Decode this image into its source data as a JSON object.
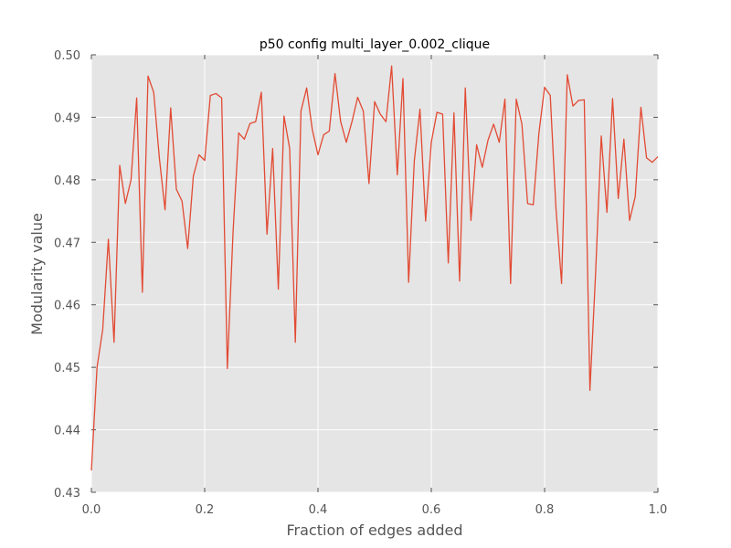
{
  "colors": {
    "plot_background": "#e5e5e5",
    "grid": "#ffffff",
    "line": "#e24a33",
    "text": "#555555"
  },
  "chart_data": {
    "type": "line",
    "title": "p50 config multi_layer_0.002_clique",
    "xlabel": "Fraction of edges added",
    "ylabel": "Modularity value",
    "xlim": [
      0.0,
      1.0
    ],
    "ylim": [
      0.43,
      0.5
    ],
    "x_ticks": [
      "0.0",
      "0.2",
      "0.4",
      "0.6",
      "0.8",
      "1.0"
    ],
    "y_ticks": [
      "0.43",
      "0.44",
      "0.45",
      "0.46",
      "0.47",
      "0.48",
      "0.49",
      "0.50"
    ],
    "grid": true,
    "series": [
      {
        "x": [
          0.0,
          0.01,
          0.02,
          0.03,
          0.04,
          0.05,
          0.06,
          0.07,
          0.08,
          0.09,
          0.1,
          0.11,
          0.12,
          0.13,
          0.14,
          0.15,
          0.16,
          0.17,
          0.18,
          0.19,
          0.2,
          0.21,
          0.22,
          0.23,
          0.24,
          0.25,
          0.26,
          0.27,
          0.28,
          0.29,
          0.3,
          0.31,
          0.32,
          0.33,
          0.34,
          0.35,
          0.36,
          0.37,
          0.38,
          0.39,
          0.4,
          0.41,
          0.42,
          0.43,
          0.44,
          0.45,
          0.46,
          0.47,
          0.48,
          0.49,
          0.5,
          0.51,
          0.52,
          0.53,
          0.54,
          0.55,
          0.56,
          0.57,
          0.58,
          0.59,
          0.6,
          0.61,
          0.62,
          0.63,
          0.64,
          0.65,
          0.66,
          0.67,
          0.68,
          0.69,
          0.7,
          0.71,
          0.72,
          0.73,
          0.74,
          0.75,
          0.76,
          0.77,
          0.78,
          0.79,
          0.8,
          0.81,
          0.82,
          0.83,
          0.84,
          0.85,
          0.86,
          0.87,
          0.88,
          0.89,
          0.9,
          0.91,
          0.92,
          0.93,
          0.94,
          0.95,
          0.96,
          0.97,
          0.98,
          0.99,
          1.0
        ],
        "values": [
          0.4335,
          0.45,
          0.456,
          0.4705,
          0.454,
          0.4823,
          0.4762,
          0.48,
          0.4931,
          0.462,
          0.4966,
          0.494,
          0.4835,
          0.4752,
          0.4915,
          0.4785,
          0.4766,
          0.469,
          0.4806,
          0.484,
          0.4831,
          0.4935,
          0.4938,
          0.4931,
          0.4498,
          0.4715,
          0.4875,
          0.4865,
          0.489,
          0.4893,
          0.494,
          0.4713,
          0.485,
          0.4625,
          0.4902,
          0.485,
          0.454,
          0.491,
          0.4947,
          0.488,
          0.484,
          0.4872,
          0.4878,
          0.497,
          0.4893,
          0.486,
          0.4893,
          0.4932,
          0.491,
          0.4794,
          0.4925,
          0.4905,
          0.4893,
          0.4982,
          0.4808,
          0.4962,
          0.4636,
          0.483,
          0.4913,
          0.4734,
          0.486,
          0.4908,
          0.4905,
          0.4667,
          0.4907,
          0.4638,
          0.4947,
          0.4735,
          0.4856,
          0.482,
          0.4863,
          0.4889,
          0.486,
          0.4929,
          0.4634,
          0.4929,
          0.4889,
          0.4762,
          0.476,
          0.4875,
          0.4948,
          0.4935,
          0.4755,
          0.4634,
          0.4968,
          0.4918,
          0.4927,
          0.4928,
          0.4463,
          0.465,
          0.487,
          0.4748,
          0.493,
          0.477,
          0.4865,
          0.4735,
          0.4773,
          0.4916,
          0.4835,
          0.4828,
          0.4837
        ]
      }
    ]
  }
}
